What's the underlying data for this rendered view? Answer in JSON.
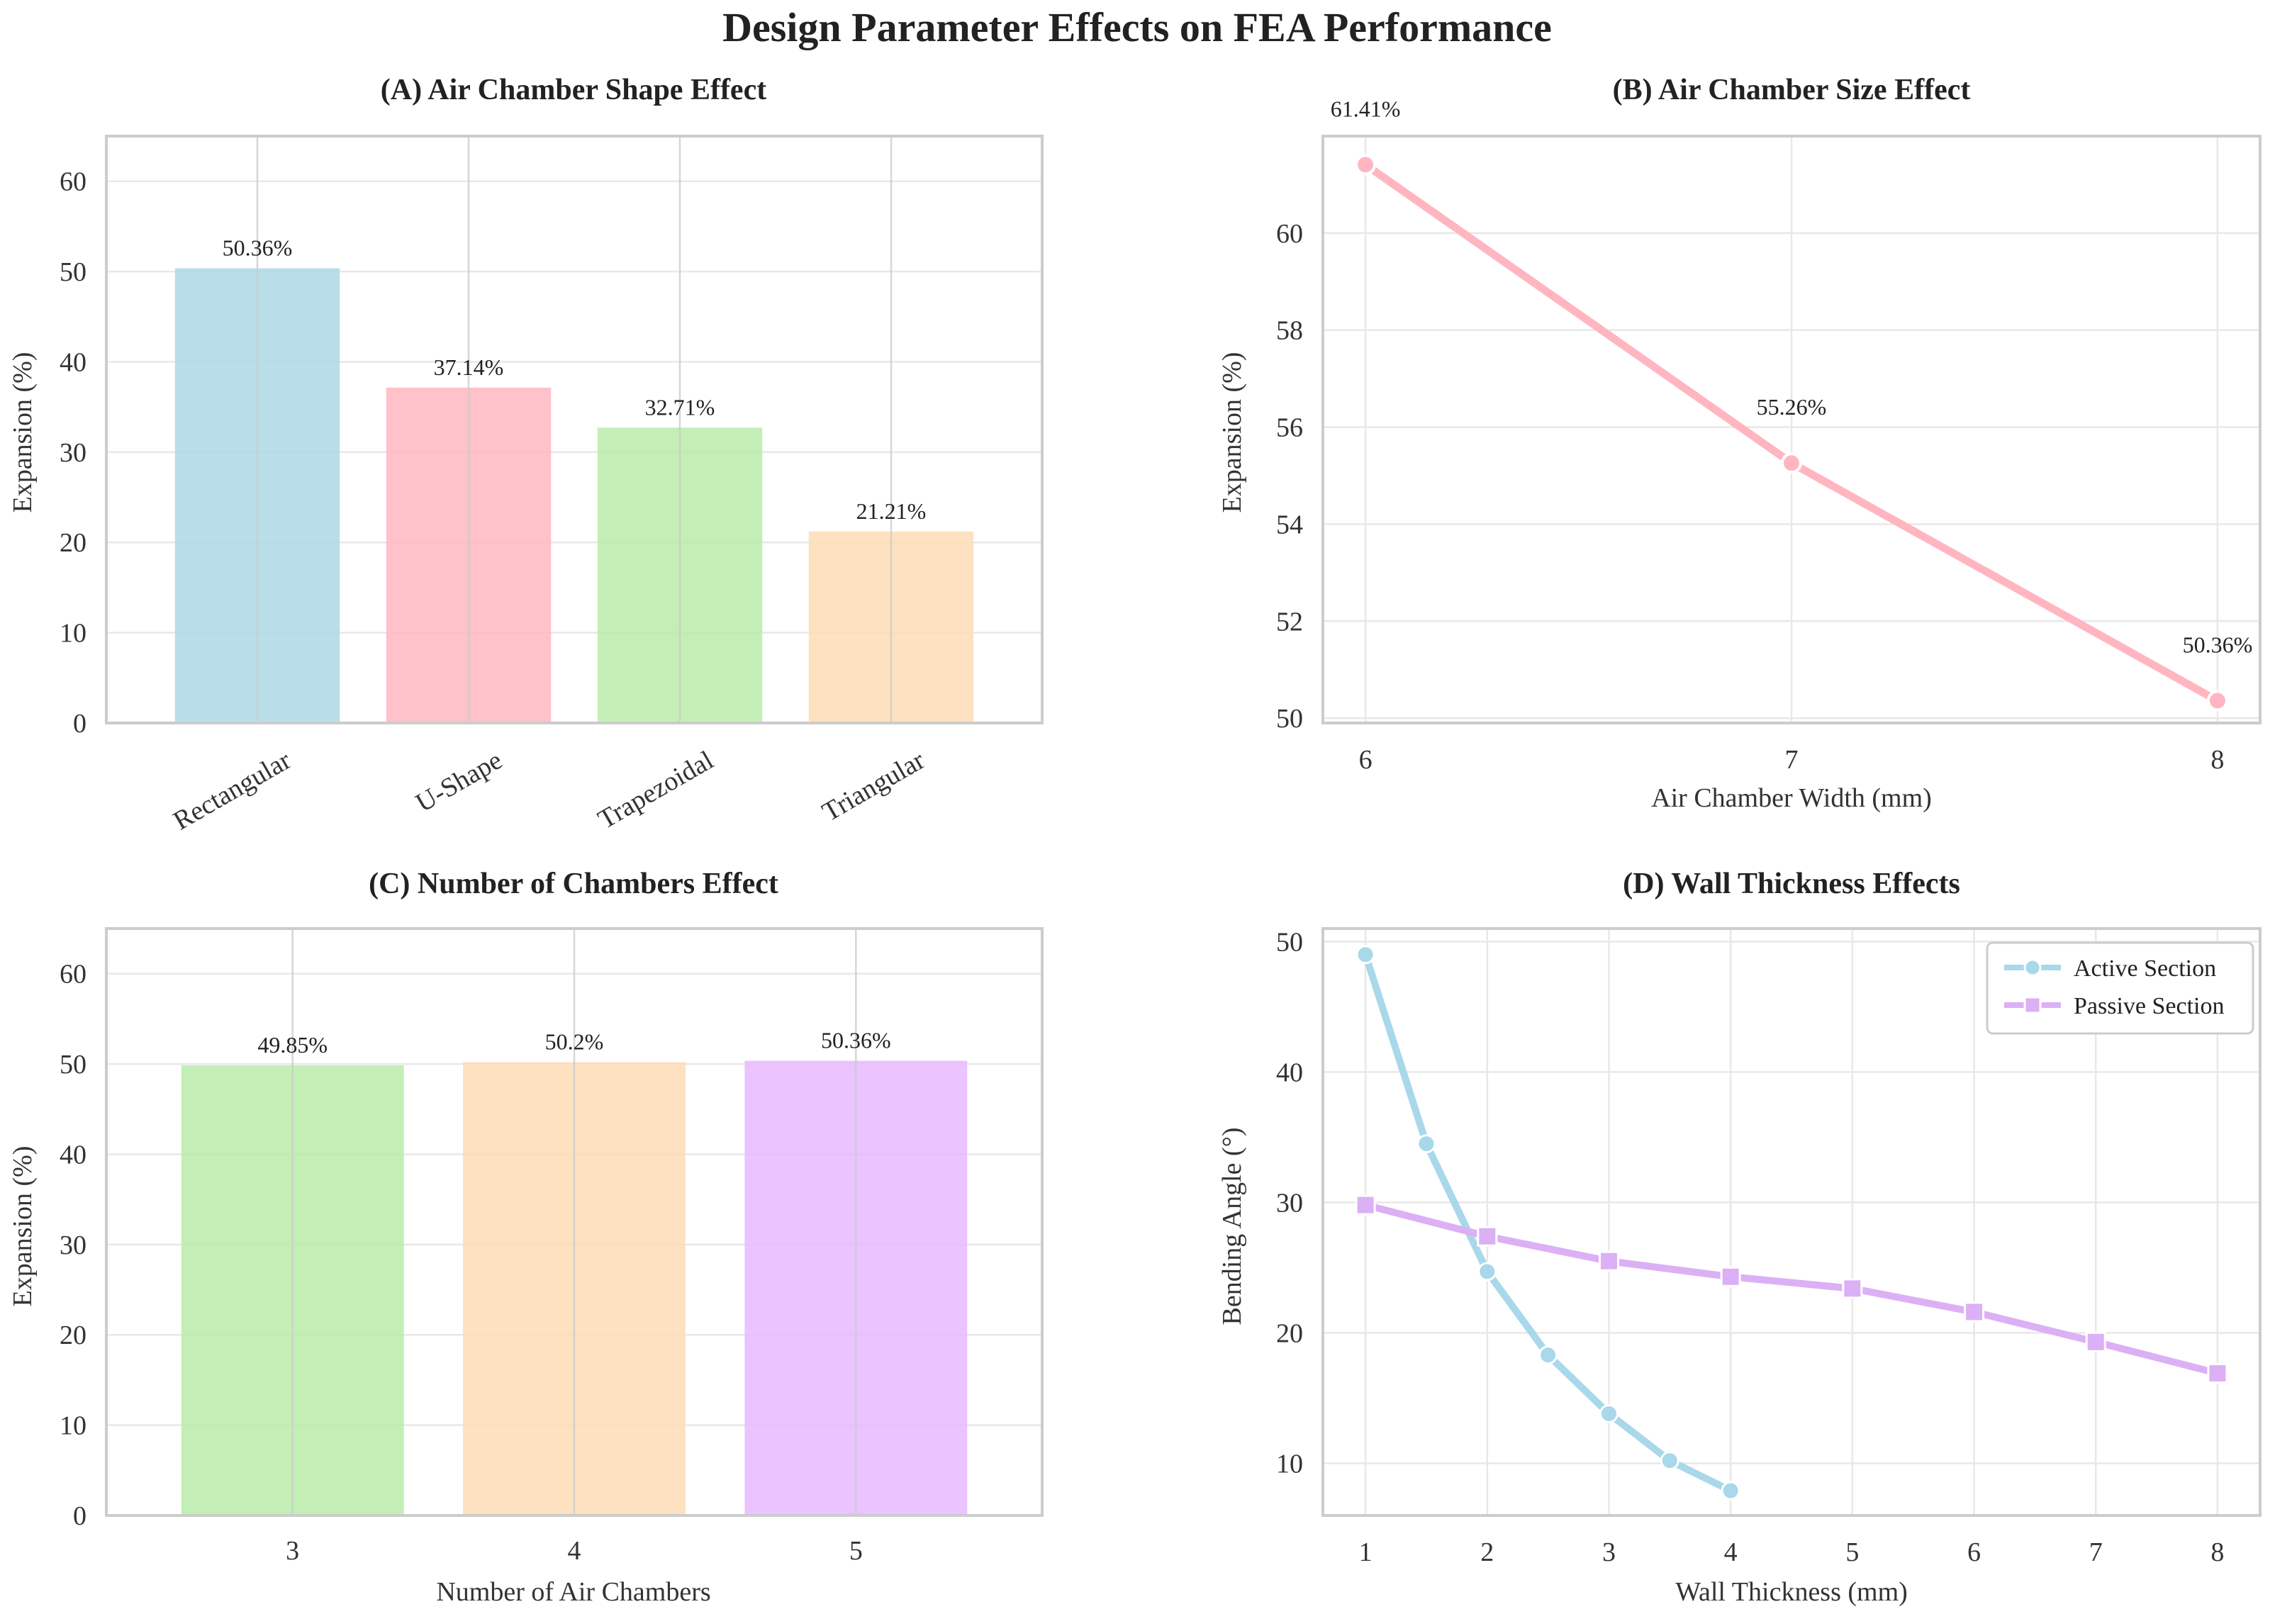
{
  "figure": {
    "title": "Design Parameter Effects on FEA Performance"
  },
  "chart_data": [
    {
      "id": "A",
      "type": "bar",
      "title": "(A) Air Chamber Shape Effect",
      "xlabel": "",
      "ylabel": "Expansion (%)",
      "categories": [
        "Rectangular",
        "U-Shape",
        "Trapezoidal",
        "Triangular"
      ],
      "values": [
        50.36,
        37.14,
        32.71,
        21.21
      ],
      "data_labels": [
        "50.36%",
        "37.14%",
        "32.71%",
        "21.21%"
      ],
      "colors": [
        "#add8e6",
        "#ffb6c1",
        "#b8ecaa",
        "#fddcb5"
      ],
      "ylim": [
        0,
        65
      ],
      "yticks": [
        0,
        10,
        20,
        30,
        40,
        50,
        60
      ],
      "xtick_rotation": "diagonal",
      "grid": true
    },
    {
      "id": "B",
      "type": "line",
      "title": "(B) Air Chamber Size Effect",
      "xlabel": "Air Chamber Width (mm)",
      "ylabel": "Expansion (%)",
      "x": [
        6,
        7,
        8
      ],
      "series": [
        {
          "values": [
            61.41,
            55.26,
            50.36
          ],
          "color": "#ffb6c1",
          "marker": "circle"
        }
      ],
      "data_labels": [
        "61.41%",
        "55.26%",
        "50.36%"
      ],
      "xlim": [
        5.9,
        8.1
      ],
      "ylim": [
        49.9,
        62.0
      ],
      "xticks": [
        6,
        7,
        8
      ],
      "yticks": [
        50,
        52,
        54,
        56,
        58,
        60
      ],
      "grid": true
    },
    {
      "id": "C",
      "type": "bar",
      "title": "(C) Number of Chambers Effect",
      "xlabel": "Number of Air Chambers",
      "ylabel": "Expansion (%)",
      "categories": [
        "3",
        "4",
        "5"
      ],
      "values": [
        49.85,
        50.2,
        50.36
      ],
      "data_labels": [
        "49.85%",
        "50.2%",
        "50.36%"
      ],
      "colors": [
        "#b8ecaa",
        "#fddcb5",
        "#e6b8ff"
      ],
      "ylim": [
        0,
        65
      ],
      "yticks": [
        0,
        10,
        20,
        30,
        40,
        50,
        60
      ],
      "grid": true
    },
    {
      "id": "D",
      "type": "line",
      "title": "(D) Wall Thickness Effects",
      "xlabel": "Wall Thickness (mm)",
      "ylabel": "Bending Angle (°)",
      "series": [
        {
          "name": "Active Section",
          "x": [
            1,
            1.5,
            2,
            2.5,
            3,
            3.5,
            4
          ],
          "values": [
            49.0,
            34.5,
            24.7,
            18.3,
            13.8,
            10.2,
            7.9
          ],
          "color": "#a8d8ea",
          "marker": "circle",
          "linestyle": "solid"
        },
        {
          "name": "Passive Section",
          "x": [
            1,
            2,
            3,
            4,
            5,
            6,
            7,
            8
          ],
          "values": [
            29.8,
            27.4,
            25.5,
            24.3,
            23.4,
            21.6,
            19.3,
            16.9
          ],
          "color": "#dcb0f5",
          "marker": "square",
          "linestyle": "solid"
        }
      ],
      "xlim": [
        0.65,
        8.35
      ],
      "ylim": [
        6.0,
        51.0
      ],
      "xticks": [
        1,
        2,
        3,
        4,
        5,
        6,
        7,
        8
      ],
      "yticks": [
        10,
        20,
        30,
        40,
        50
      ],
      "legend": "top-right",
      "grid": true
    }
  ]
}
